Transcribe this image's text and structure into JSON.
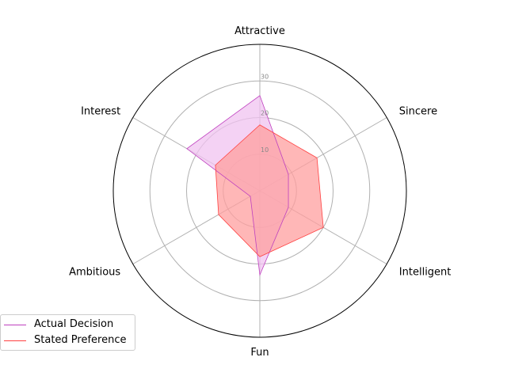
{
  "chart_data": {
    "type": "radar",
    "title": "",
    "axes": [
      "Attractive",
      "Sincere",
      "Intelligent",
      "Fun",
      "Ambitious",
      "Interest"
    ],
    "rlim": [
      0,
      40
    ],
    "rticks": [
      10,
      20,
      30
    ],
    "rtick_labels": [
      "10",
      "20",
      "30"
    ],
    "grid": true,
    "legend": "lower-left",
    "series": [
      {
        "name": "Actual Decision",
        "values": [
          26,
          9,
          9,
          23,
          3,
          23
        ],
        "color": "#bf40bf",
        "fill": "#f0c3f0"
      },
      {
        "name": "Stated Preference",
        "values": [
          18,
          18,
          20,
          18,
          13,
          14
        ],
        "color": "#ff4040",
        "fill": "#ff9f9f"
      }
    ]
  }
}
